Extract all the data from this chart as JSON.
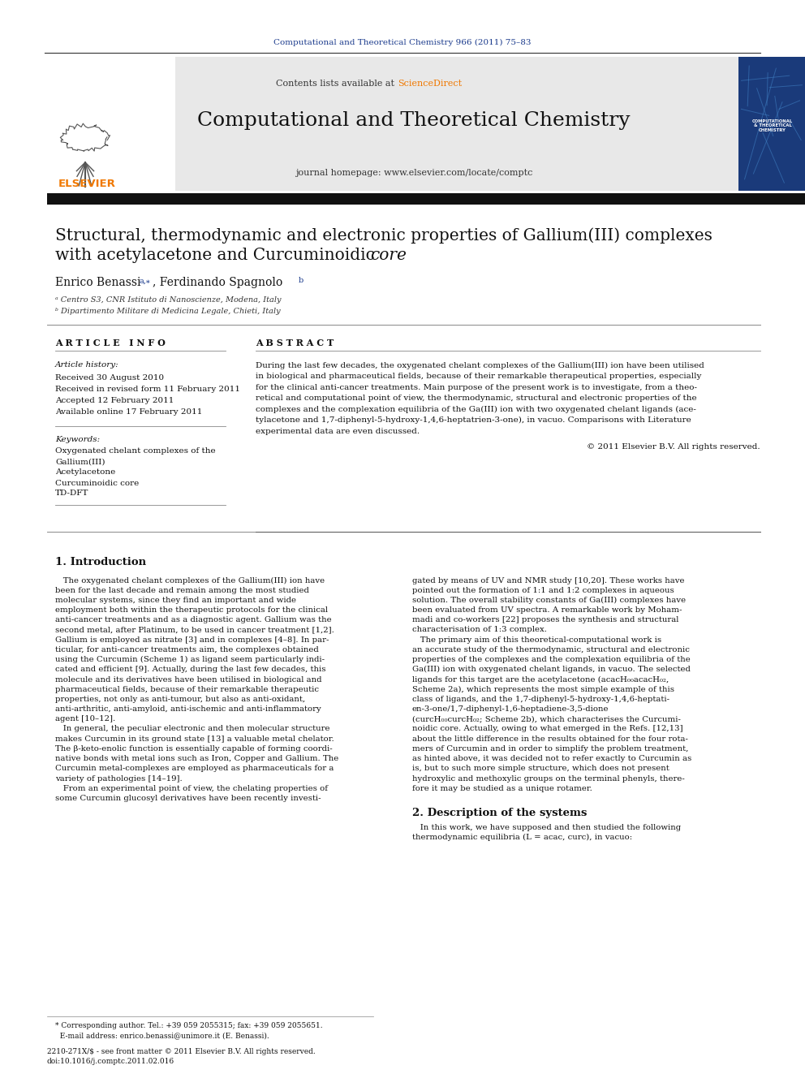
{
  "page_bg": "#ffffff",
  "top_journal_ref": "Computational and Theoretical Chemistry 966 (2011) 75–83",
  "top_journal_ref_color": "#1a3a8c",
  "journal_header_bg": "#e8e8e8",
  "journal_name": "Computational and Theoretical Chemistry",
  "journal_homepage": "journal homepage: www.elsevier.com/locate/comptc",
  "contents_text": "Contents lists available at ",
  "sciencedirect_text": "ScienceDirect",
  "sciencedirect_color": "#f07800",
  "article_title_line1": "Structural, thermodynamic and electronic properties of Gallium(III) complexes",
  "article_title_line2": "with acetylacetone and Curcuminoidic ",
  "article_title_line2_italic": "core",
  "affil_a": "ᵃ Centro S3, CNR Istituto di Nanoscienze, Modena, Italy",
  "affil_b": "ᵇ Dipartimento Militare di Medicina Legale, Chieti, Italy",
  "article_info_label": "A R T I C L E   I N F O",
  "abstract_label": "A B S T R A C T",
  "article_history_label": "Article history:",
  "received": "Received 30 August 2010",
  "revised": "Received in revised form 11 February 2011",
  "accepted": "Accepted 12 February 2011",
  "available": "Available online 17 February 2011",
  "keywords_label": "Keywords:",
  "keyword1": "Oxygenated chelant complexes of the",
  "keyword2": "Gallium(III)",
  "keyword3": "Acetylacetone",
  "keyword4": "Curcuminoidic core",
  "keyword5": "TD-DFT",
  "abstract_text": "During the last few decades, the oxygenated chelant complexes of the Gallium(III) ion have been utilised\nin biological and pharmaceutical fields, because of their remarkable therapeutical properties, especially\nfor the clinical anti-cancer treatments. Main purpose of the present work is to investigate, from a theo-\nretical and computational point of view, the thermodynamic, structural and electronic properties of the\ncomplexes and the complexation equilibria of the Ga(III) ion with two oxygenated chelant ligands (ace-\ntylacetone and 1,7-diphenyl-5-hydroxy-1,4,6-heptatrien-3-one), in vacuo. Comparisons with Literature\nexperimental data are even discussed.",
  "copyright": "© 2011 Elsevier B.V. All rights reserved.",
  "intro_section": "1. Introduction",
  "intro_col1": "   The oxygenated chelant complexes of the Gallium(III) ion have\nbeen for the last decade and remain among the most studied\nmolecular systems, since they find an important and wide\nemployment both within the therapeutic protocols for the clinical\nanti-cancer treatments and as a diagnostic agent. Gallium was the\nsecond metal, after Platinum, to be used in cancer treatment [1,2].\nGallium is employed as nitrate [3] and in complexes [4–8]. In par-\nticular, for anti-cancer treatments aim, the complexes obtained\nusing the Curcumin (Scheme 1) as ligand seem particularly indi-\ncated and efficient [9]. Actually, during the last few decades, this\nmolecule and its derivatives have been utilised in biological and\npharmaceutical fields, because of their remarkable therapeutic\nproperties, not only as anti-tumour, but also as anti-oxidant,\nanti-arthritic, anti-amyloid, anti-ischemic and anti-inflammatory\nagent [10–12].\n   In general, the peculiar electronic and then molecular structure\nmakes Curcumin in its ground state [13] a valuable metal chelator.\nThe β-keto-enolic function is essentially capable of forming coordi-\nnative bonds with metal ions such as Iron, Copper and Gallium. The\nCurcumin metal-complexes are employed as pharmaceuticals for a\nvariety of pathologies [14–19].\n   From an experimental point of view, the chelating properties of\nsome Curcumin glucosyl derivatives have been recently investi-",
  "intro_col2": "gated by means of UV and NMR study [10,20]. These works have\npointed out the formation of 1:1 and 1:2 complexes in aqueous\nsolution. The overall stability constants of Ga(III) complexes have\nbeen evaluated from UV spectra. A remarkable work by Moham-\nmadi and co-workers [22] proposes the synthesis and structural\ncharacterisation of 1:3 complex.\n   The primary aim of this theoretical-computational work is\nan accurate study of the thermodynamic, structural and electronic\nproperties of the complexes and the complexation equilibria of the\nGa(III) ion with oxygenated chelant ligands, in vacuo. The selected\nligands for this target are the acetylacetone (acacH₀₀acacH₀₂,\nScheme 2a), which represents the most simple example of this\nclass of ligands, and the 1,7-diphenyl-5-hydroxy-1,4,6-heptati-\nen-3-one/1,7-diphenyl-1,6-heptadiene-3,5-dione\n(curcH₀₀curcH₀₂; Scheme 2b), which characterises the Curcumi-\nnoidic core. Actually, owing to what emerged in the Refs. [12,13]\nabout the little difference in the results obtained for the four rota-\nmers of Curcumin and in order to simplify the problem treatment,\nas hinted above, it was decided not to refer exactly to Curcumin as\nis, but to such more simple structure, which does not present\nhydroxylic and methoxylic groups on the terminal phenyls, there-\nfore it may be studied as a unique rotamer.",
  "section2_title": "2. Description of the systems",
  "section2_text": "   In this work, we have supposed and then studied the following\nthermodynamic equilibria (L = acac, curc), in vacuo:",
  "footnote1": "* Corresponding author. Tel.: +39 059 2055315; fax: +39 059 2055651.",
  "footnote2": "  E-mail address: enrico.benassi@unimore.it (E. Benassi).",
  "footnote3": "2210-271X/$ - see front matter © 2011 Elsevier B.V. All rights reserved.",
  "footnote4": "doi:10.1016/j.comptc.2011.02.016",
  "elsevier_color": "#f07800",
  "link_color": "#1a3a8c"
}
